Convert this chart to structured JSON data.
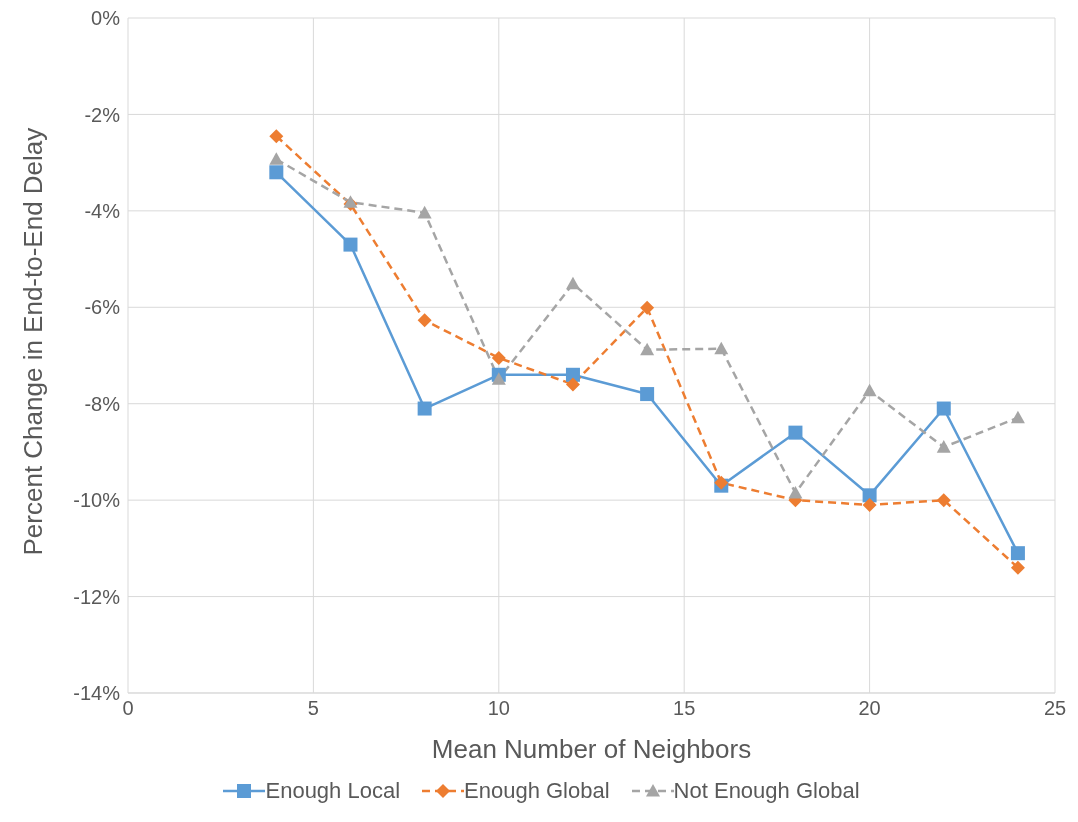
{
  "chart_data": {
    "type": "line",
    "xlabel": "Mean Number of Neighbors",
    "ylabel": "Percent Change in End-to-End Delay",
    "x": [
      4,
      6,
      8,
      10,
      12,
      14,
      16,
      18,
      20,
      22,
      24
    ],
    "series": [
      {
        "name": "Enough Local",
        "color": "#5b9bd5",
        "marker": "square",
        "line_style": "solid",
        "values": [
          -3.2,
          -4.7,
          -8.1,
          -7.4,
          -7.4,
          -7.8,
          -9.7,
          -8.6,
          -9.9,
          -8.1,
          -11.1
        ]
      },
      {
        "name": "Enough Global",
        "color": "#ed7d31",
        "marker": "diamond",
        "line_style": "dashed",
        "values": [
          -2.45,
          -3.86,
          -6.27,
          -7.05,
          -7.6,
          -6.01,
          -9.64,
          -10.0,
          -10.1,
          -10.0,
          -11.4
        ]
      },
      {
        "name": "Not Enough Global",
        "color": "#a5a5a5",
        "marker": "triangle",
        "line_style": "dashed",
        "values": [
          -2.93,
          -3.82,
          -4.04,
          -7.49,
          -5.51,
          -6.88,
          -6.86,
          -9.85,
          -7.73,
          -8.9,
          -8.29
        ]
      }
    ],
    "xlim": [
      0,
      25
    ],
    "xticks": [
      0,
      5,
      10,
      15,
      20,
      25
    ],
    "ylim": [
      -14,
      0
    ],
    "yticks": [
      {
        "value": -14,
        "label": "-14%"
      },
      {
        "value": -12,
        "label": "-12%"
      },
      {
        "value": -10,
        "label": "-10%"
      },
      {
        "value": -8,
        "label": "-8%"
      },
      {
        "value": -6,
        "label": "-6%"
      },
      {
        "value": -4,
        "label": "-4%"
      },
      {
        "value": -2,
        "label": "-2%"
      },
      {
        "value": 0,
        "label": "0%"
      }
    ],
    "grid": true,
    "legend": "bottom"
  }
}
